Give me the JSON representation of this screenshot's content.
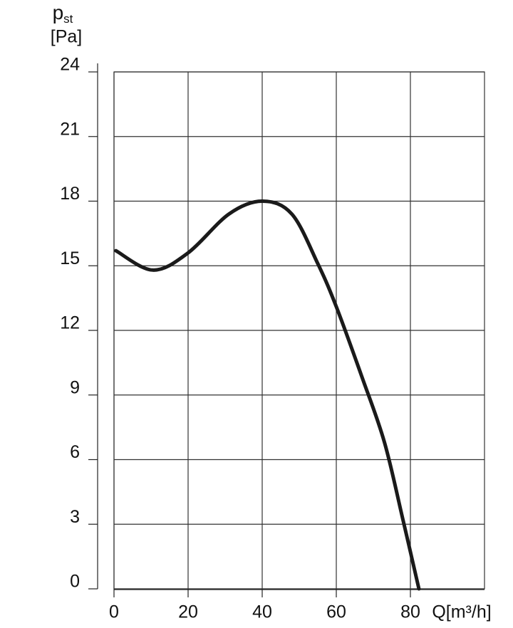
{
  "chart_data": {
    "type": "line",
    "y_label": {
      "symbol": "p",
      "subscript": "st",
      "unit": "[Pa]"
    },
    "x_label": "Q[m³/h]",
    "x": [
      0.5,
      10.5,
      20,
      31,
      40,
      48,
      55,
      60,
      67,
      73,
      78,
      82.3
    ],
    "series": [
      {
        "color": "#1a1a1a",
        "values": [
          15.7,
          14.8,
          15.6,
          17.4,
          18.0,
          17.4,
          15.1,
          13.1,
          9.8,
          6.8,
          3.2,
          0
        ]
      }
    ],
    "xlim": [
      0,
      100
    ],
    "xticks": [
      0,
      20,
      40,
      60,
      80
    ],
    "ylim": [
      0,
      24
    ],
    "yticks": [
      0,
      3,
      6,
      9,
      12,
      15,
      18,
      21,
      24
    ],
    "grid": true
  }
}
